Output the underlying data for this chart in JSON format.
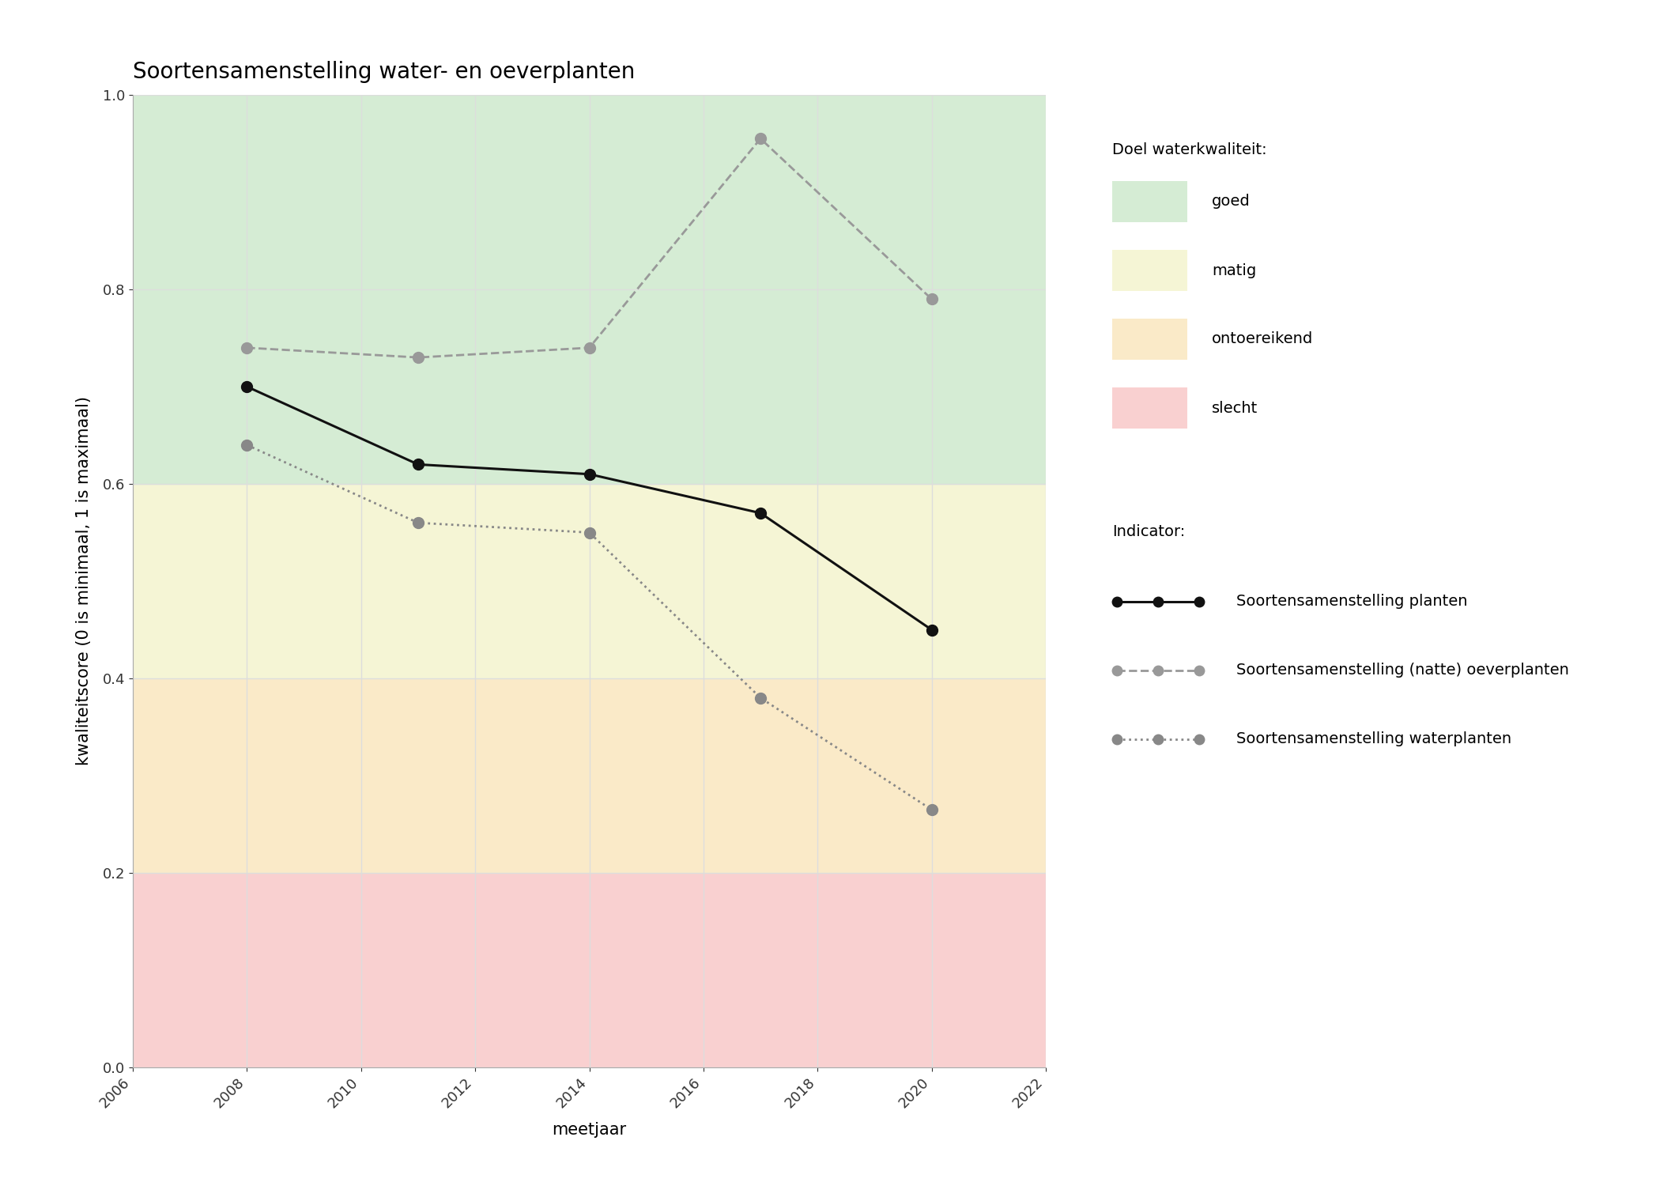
{
  "title": "Soortensamenstelling water- en oeverplanten",
  "xlabel": "meetjaar",
  "ylabel": "kwaliteitscore (0 is minimaal, 1 is maximaal)",
  "xlim": [
    2006,
    2022
  ],
  "ylim": [
    0.0,
    1.0
  ],
  "xticks": [
    2006,
    2008,
    2010,
    2012,
    2014,
    2016,
    2018,
    2020,
    2022
  ],
  "yticks": [
    0.0,
    0.2,
    0.4,
    0.6,
    0.8,
    1.0
  ],
  "bg_colors": {
    "goed": "#d5ecd4",
    "matig": "#f5f5d5",
    "ontoereikend": "#faeac8",
    "slecht": "#f9d0d0"
  },
  "bg_ranges": {
    "goed": [
      0.6,
      1.0
    ],
    "matig": [
      0.4,
      0.6
    ],
    "ontoereikend": [
      0.2,
      0.4
    ],
    "slecht": [
      0.0,
      0.2
    ]
  },
  "line_planten": {
    "years": [
      2008,
      2011,
      2014,
      2017,
      2020
    ],
    "values": [
      0.7,
      0.62,
      0.61,
      0.57,
      0.45
    ],
    "color": "#111111",
    "linestyle": "solid",
    "linewidth": 2.2,
    "marker": "o",
    "markersize": 10,
    "zorder": 5
  },
  "line_oeverplanten": {
    "years": [
      2008,
      2011,
      2014,
      2017,
      2020
    ],
    "values": [
      0.74,
      0.73,
      0.74,
      0.955,
      0.79
    ],
    "color": "#999999",
    "linestyle": "dashed",
    "linewidth": 2.0,
    "marker": "o",
    "markersize": 10,
    "zorder": 4
  },
  "line_waterplanten": {
    "years": [
      2008,
      2011,
      2014,
      2017,
      2020
    ],
    "values": [
      0.64,
      0.56,
      0.55,
      0.38,
      0.265
    ],
    "color": "#888888",
    "linestyle": "dotted",
    "linewidth": 2.0,
    "marker": "o",
    "markersize": 10,
    "zorder": 3
  },
  "legend_doel_title": "Doel waterkwaliteit:",
  "legend_indicator_title": "Indicator:",
  "legend_goed": "goed",
  "legend_matig": "matig",
  "legend_ontoereikend": "ontoereikend",
  "legend_slecht": "slecht",
  "legend_planten": "Soortensamenstelling planten",
  "legend_oeverplanten": "Soortensamenstelling (natte) oeverplanten",
  "legend_waterplanten": "Soortensamenstelling waterplanten",
  "fig_width": 21.0,
  "fig_height": 15.0,
  "background_color": "#ffffff",
  "grid_color": "#dddddd",
  "title_fontsize": 20,
  "label_fontsize": 15,
  "tick_fontsize": 13,
  "legend_fontsize": 14
}
